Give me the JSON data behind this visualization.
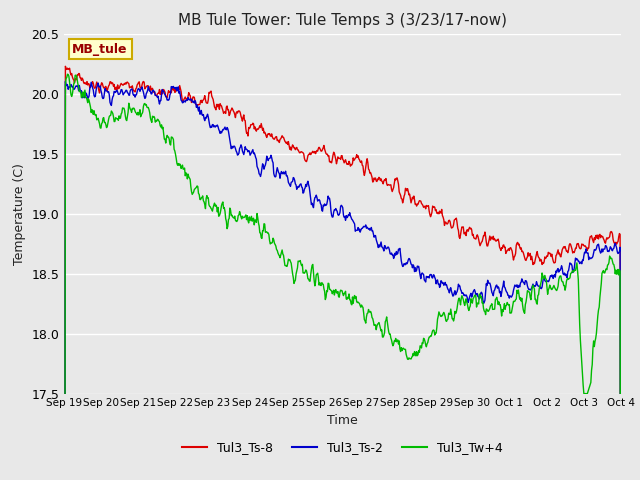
{
  "title": "MB Tule Tower: Tule Temps 3 (3/23/17-now)",
  "ylabel": "Temperature (C)",
  "xlabel": "Time",
  "ylim": [
    17.5,
    20.5
  ],
  "bg_color": "#e8e8e8",
  "plot_bg_color": "#e8e8e8",
  "grid_color": "#ffffff",
  "legend_label": "MB_tule",
  "legend_bg": "#ffffcc",
  "legend_border": "#ccaa00",
  "series": [
    "Tul3_Ts-8",
    "Tul3_Ts-2",
    "Tul3_Tw+4"
  ],
  "series_colors": [
    "#dd0000",
    "#0000cc",
    "#00bb00"
  ],
  "x_tick_labels": [
    "Sep 19",
    "Sep 20",
    "Sep 21",
    "Sep 22",
    "Sep 23",
    "Sep 24",
    "Sep 25",
    "Sep 26",
    "Sep 27",
    "Sep 28",
    "Sep 29",
    "Sep 30",
    "Oct 1",
    "Oct 2",
    "Oct 3",
    "Oct 4"
  ],
  "n_points": 800
}
